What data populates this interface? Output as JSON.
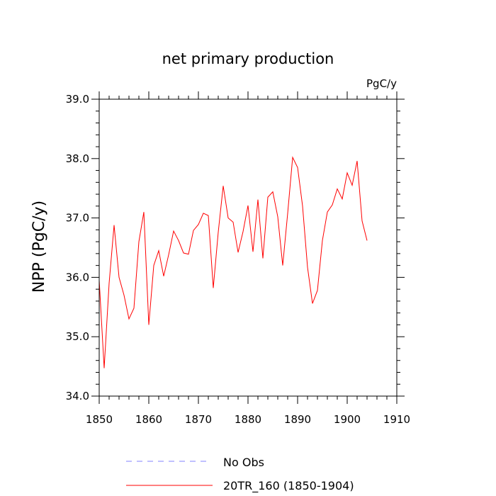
{
  "chart_data": {
    "type": "line",
    "title": "net primary production",
    "units": "PgC/y",
    "ylabel": "NPP  (PgC/y)",
    "xlabel": "",
    "xlim": [
      1850,
      1910
    ],
    "ylim": [
      34.0,
      39.0
    ],
    "xticks": [
      1850,
      1860,
      1870,
      1880,
      1890,
      1900,
      1910
    ],
    "yticks": [
      34.0,
      35.0,
      36.0,
      37.0,
      38.0,
      39.0
    ],
    "ytick_labels": [
      "34.0",
      "35.0",
      "36.0",
      "37.0",
      "38.0",
      "39.0"
    ],
    "x_minor_step": 2,
    "y_minor_step": 0.2,
    "series": [
      {
        "name": "20TR_160 (1850-1904)",
        "color": "#ff0000",
        "dash": "solid",
        "x": [
          1850,
          1851,
          1852,
          1853,
          1854,
          1855,
          1856,
          1857,
          1858,
          1859,
          1860,
          1861,
          1862,
          1863,
          1864,
          1865,
          1866,
          1867,
          1868,
          1869,
          1870,
          1871,
          1872,
          1873,
          1874,
          1875,
          1876,
          1877,
          1878,
          1879,
          1880,
          1881,
          1882,
          1883,
          1884,
          1885,
          1886,
          1887,
          1888,
          1889,
          1890,
          1891,
          1892,
          1893,
          1894,
          1895,
          1896,
          1897,
          1898,
          1899,
          1900,
          1901,
          1902,
          1903,
          1904
        ],
        "values": [
          35.95,
          34.47,
          35.9,
          36.88,
          36.0,
          35.7,
          35.3,
          35.48,
          36.6,
          37.1,
          35.2,
          36.2,
          36.45,
          36.02,
          36.38,
          36.78,
          36.62,
          36.41,
          36.39,
          36.79,
          36.89,
          37.08,
          37.04,
          35.82,
          36.76,
          37.54,
          37.0,
          36.93,
          36.42,
          36.77,
          37.21,
          36.43,
          37.31,
          36.32,
          37.35,
          37.44,
          37.02,
          36.2,
          37.08,
          38.02,
          37.85,
          37.2,
          36.17,
          35.56,
          35.78,
          36.62,
          37.1,
          37.22,
          37.49,
          37.32,
          37.76,
          37.55,
          37.96,
          36.95,
          36.62
        ]
      }
    ],
    "legend": [
      {
        "label": "No Obs",
        "color": "#8080ff",
        "dash": "dashed"
      },
      {
        "label": "20TR_160 (1850-1904)",
        "color": "#ff0000",
        "dash": "solid"
      }
    ]
  }
}
